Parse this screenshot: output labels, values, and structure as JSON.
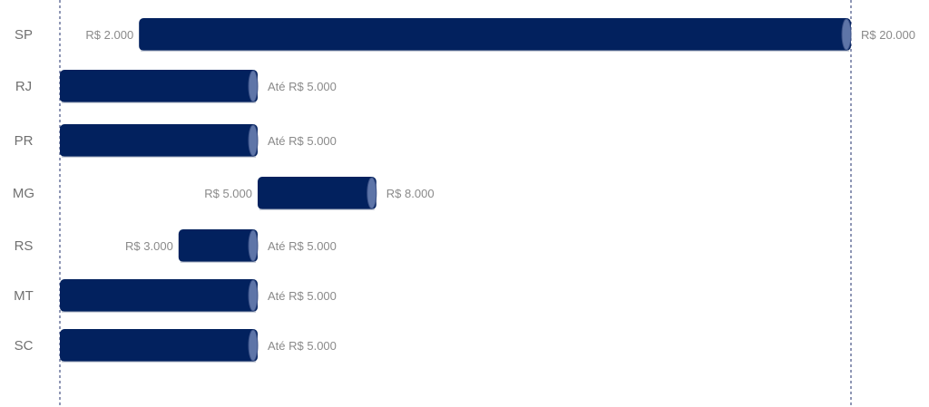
{
  "chart_data": {
    "type": "bar",
    "orientation": "horizontal",
    "colors": {
      "bar": "#02215E",
      "bar_cap": "#5E75A8",
      "guide": "#1F2F6B"
    },
    "rows": [
      {
        "category": "SP",
        "start": 2000,
        "end": 20000,
        "start_label": "R$ 2.000",
        "end_label": "R$ 20.000"
      },
      {
        "category": "RJ",
        "start": 0,
        "end": 5000,
        "start_label": "",
        "end_label": "Até R$ 5.000"
      },
      {
        "category": "PR",
        "start": 0,
        "end": 5000,
        "start_label": "",
        "end_label": "Até R$ 5.000"
      },
      {
        "category": "MG",
        "start": 5000,
        "end": 8000,
        "start_label": "R$ 5.000",
        "end_label": "R$ 8.000"
      },
      {
        "category": "RS",
        "start": 3000,
        "end": 5000,
        "start_label": "R$ 3.000",
        "end_label": "Até R$ 5.000"
      },
      {
        "category": "MT",
        "start": 0,
        "end": 5000,
        "start_label": "",
        "end_label": "Até R$ 5.000"
      },
      {
        "category": "SC",
        "start": 0,
        "end": 5000,
        "start_label": "",
        "end_label": "Até R$ 5.000"
      }
    ],
    "xlim": [
      0,
      20000
    ],
    "grid": false,
    "guides": "dashed vertical lines at axis minimum and maximum"
  }
}
